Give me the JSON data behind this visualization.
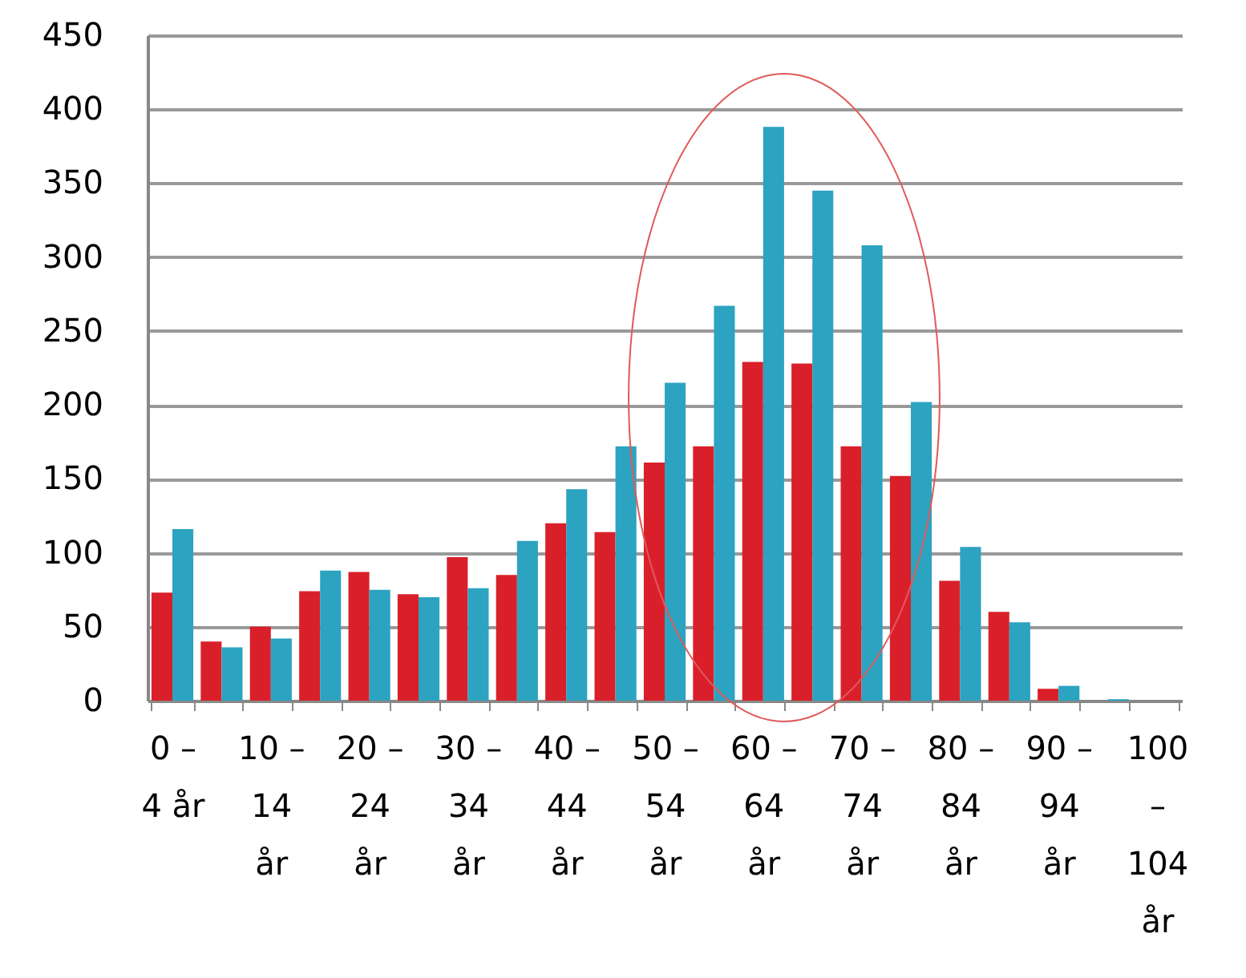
{
  "chart_data": {
    "type": "bar",
    "categories": [
      "0 – 4 år",
      null,
      "10 – 14 år",
      null,
      "20 – 24 år",
      null,
      "30 – 34 år",
      null,
      "40 – 44 år",
      null,
      "50 – 54 år",
      null,
      "60 – 64 år",
      null,
      "70 – 74 år",
      null,
      "80 – 84 år",
      null,
      "90 – 94 år",
      null,
      "100 – 104 år"
    ],
    "series": [
      {
        "color": "#d9202a",
        "values": [
          73,
          40,
          50,
          74,
          87,
          72,
          97,
          85,
          120,
          114,
          161,
          172,
          229,
          228,
          172,
          152,
          81,
          60,
          8,
          0,
          0
        ]
      },
      {
        "color": "#2ca3c0",
        "values": [
          116,
          36,
          42,
          88,
          75,
          70,
          76,
          108,
          143,
          172,
          215,
          267,
          388,
          345,
          308,
          202,
          104,
          53,
          10,
          1,
          0
        ]
      }
    ],
    "ylim": [
      0,
      450
    ],
    "yticks": [
      0,
      50,
      100,
      150,
      200,
      250,
      300,
      350,
      400,
      450
    ],
    "grid": "y",
    "legend": false
  }
}
